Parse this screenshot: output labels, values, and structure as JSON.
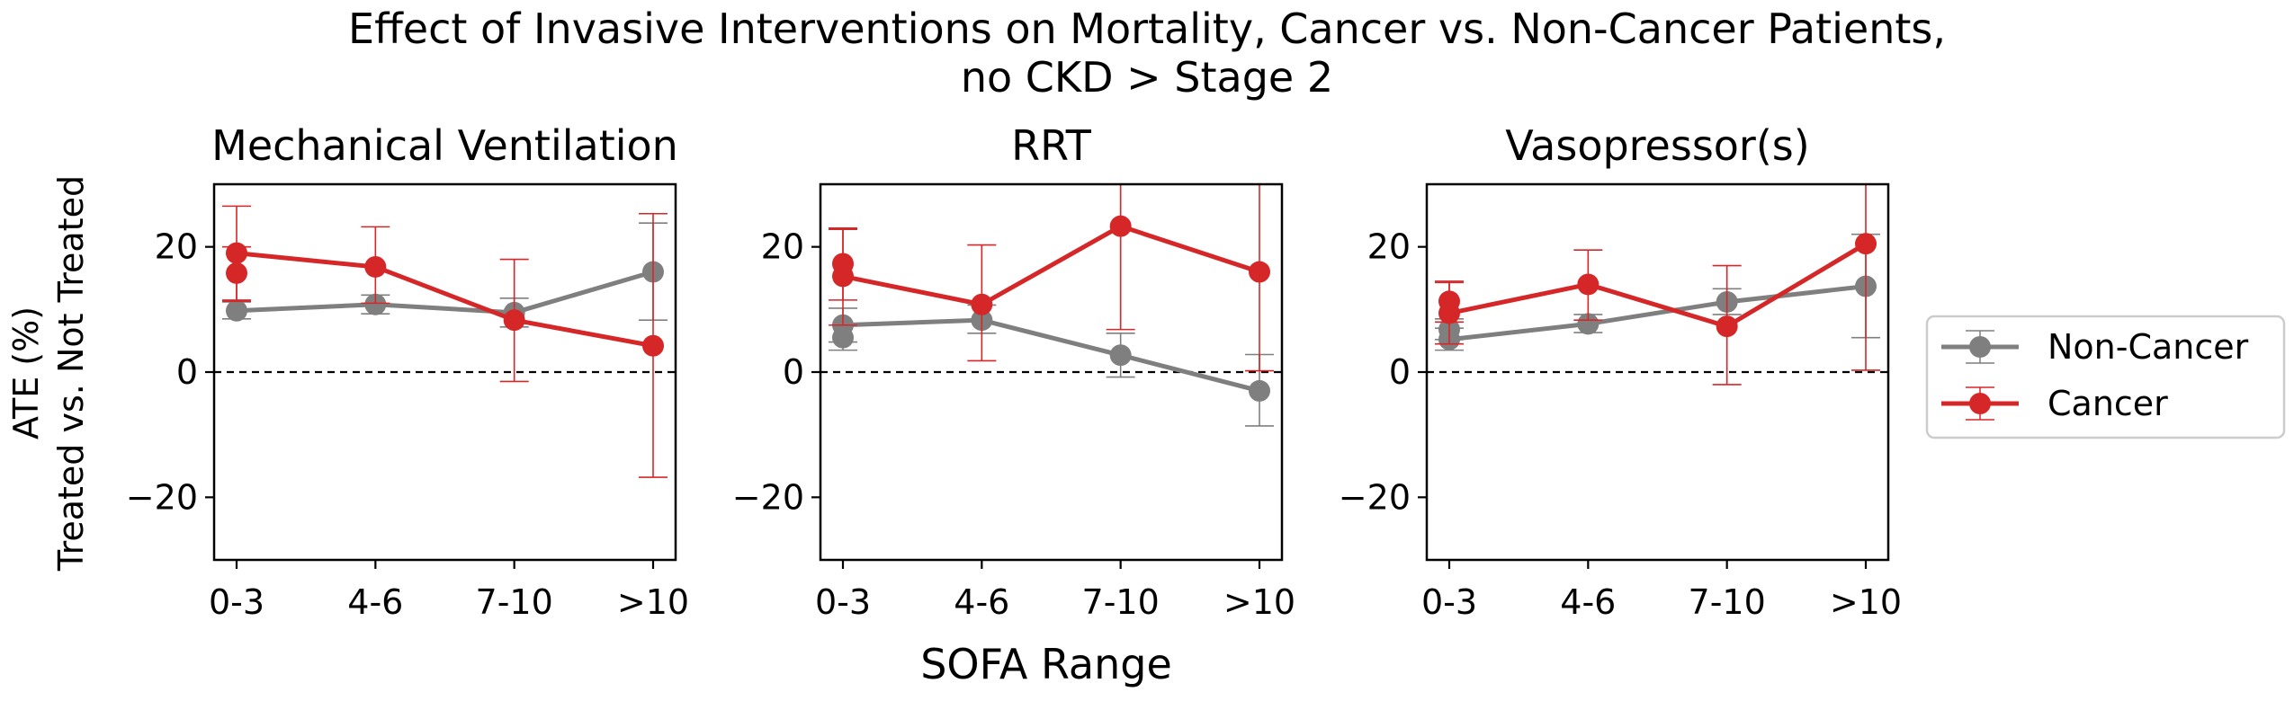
{
  "figure": {
    "title_line1": "Effect of Invasive Interventions on Mortality, Cancer vs. Non-Cancer Patients,",
    "title_line2": "no CKD > Stage 2",
    "xlabel": "SOFA Range",
    "ylabel_line1": "ATE (%)",
    "ylabel_line2": "Treated vs. Not Treated"
  },
  "legend": {
    "placement": "right-center",
    "entries": [
      {
        "label": "Non-Cancer",
        "color": "#7f7f7f"
      },
      {
        "label": "Cancer",
        "color": "#d62728"
      }
    ]
  },
  "colors": {
    "non_cancer": "#7f7f7f",
    "cancer": "#d62728",
    "zero_line": "#000000"
  },
  "chart_data": [
    {
      "type": "line",
      "title": "Mechanical Ventilation",
      "categories": [
        "0-3",
        "4-6",
        "7-10",
        ">10"
      ],
      "ylim": [
        -30,
        30
      ],
      "yticks": [
        -20,
        0,
        20
      ],
      "ytick_labels": [
        "−20",
        "0",
        "20"
      ],
      "reference_line": 0,
      "grid": false,
      "series": [
        {
          "name": "Non-Cancer",
          "x": [
            0,
            1,
            2,
            3
          ],
          "values": [
            9.8,
            10.8,
            9.5,
            16.0
          ],
          "err_low": [
            8.5,
            9.3,
            7.2,
            8.3
          ],
          "err_high": [
            11.2,
            12.3,
            11.8,
            23.8
          ]
        },
        {
          "name": "Cancer",
          "x": [
            0,
            1,
            2,
            3
          ],
          "values": [
            19.0,
            16.8,
            8.3,
            4.2
          ],
          "err_low": [
            11.5,
            11.0,
            -1.5,
            -16.8
          ],
          "err_high": [
            26.5,
            23.2,
            18.0,
            25.3
          ]
        },
        {
          "name": "Cancer",
          "x": [
            0
          ],
          "values": [
            15.8
          ],
          "err_low": [
            11.3
          ],
          "err_high": [
            20.0
          ]
        }
      ]
    },
    {
      "type": "line",
      "title": "RRT",
      "categories": [
        "0-3",
        "4-6",
        "7-10",
        ">10"
      ],
      "ylim": [
        -30,
        30
      ],
      "yticks": [
        -20,
        0,
        20
      ],
      "ytick_labels": [
        "−20",
        "0",
        "20"
      ],
      "reference_line": 0,
      "grid": false,
      "series": [
        {
          "name": "Non-Cancer",
          "x": [
            0,
            1,
            2,
            3
          ],
          "values": [
            7.5,
            8.3,
            2.7,
            -3.0
          ],
          "err_low": [
            4.8,
            6.2,
            -0.8,
            -8.6
          ],
          "err_high": [
            10.2,
            10.7,
            6.2,
            2.8
          ]
        },
        {
          "name": "Cancer",
          "x": [
            0,
            1,
            2,
            3
          ],
          "values": [
            15.3,
            10.8,
            23.3,
            16.0
          ],
          "err_low": [
            7.5,
            1.8,
            6.8,
            0.2
          ],
          "err_high": [
            23.0,
            20.3,
            30.0,
            30.0
          ]
        },
        {
          "name": "Non-Cancer",
          "x": [
            0
          ],
          "values": [
            5.5
          ],
          "err_low": [
            3.5
          ],
          "err_high": [
            7.5
          ]
        },
        {
          "name": "Cancer",
          "x": [
            0
          ],
          "values": [
            17.3
          ],
          "err_low": [
            11.5
          ],
          "err_high": [
            22.8
          ]
        }
      ]
    },
    {
      "type": "line",
      "title": "Vasopressor(s)",
      "categories": [
        "0-3",
        "4-6",
        "7-10",
        ">10"
      ],
      "ylim": [
        -30,
        30
      ],
      "yticks": [
        -20,
        0,
        20
      ],
      "ytick_labels": [
        "−20",
        "0",
        "20"
      ],
      "reference_line": 0,
      "grid": false,
      "series": [
        {
          "name": "Non-Cancer",
          "x": [
            0,
            1,
            2,
            3
          ],
          "values": [
            5.2,
            7.7,
            11.2,
            13.7
          ],
          "err_low": [
            3.5,
            6.3,
            9.2,
            5.5
          ],
          "err_high": [
            7.0,
            9.2,
            13.3,
            22.0
          ]
        },
        {
          "name": "Cancer",
          "x": [
            0,
            1,
            2,
            3
          ],
          "values": [
            9.4,
            14.0,
            7.3,
            20.5
          ],
          "err_low": [
            4.5,
            8.3,
            -2.0,
            0.3
          ],
          "err_high": [
            14.5,
            19.5,
            17.0,
            30.0
          ]
        },
        {
          "name": "Cancer",
          "x": [
            0
          ],
          "values": [
            11.3
          ],
          "err_low": [
            8.0
          ],
          "err_high": [
            14.3
          ]
        },
        {
          "name": "Non-Cancer",
          "x": [
            0
          ],
          "values": [
            6.8
          ],
          "err_low": [
            5.2
          ],
          "err_high": [
            8.5
          ]
        }
      ]
    }
  ]
}
